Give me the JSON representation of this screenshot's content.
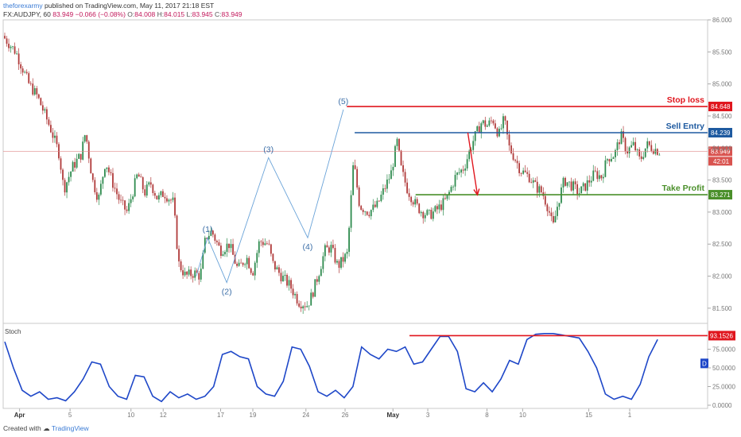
{
  "header": {
    "author": "theforexarmy",
    "published_text": "published on TradingView.com, May 11, 2017 21:18 EST",
    "symbol": "FX:AUDJPY, 60",
    "last": "83.949",
    "change": "−0.066 (−0.08%)",
    "o_label": "O:",
    "o_value": "84.008",
    "h_label": "H:",
    "h_value": "84.015",
    "l_label": "L:",
    "l_value": "83.945",
    "c_label": "C:",
    "c_value": "83.949"
  },
  "footer": {
    "created_with": "Created with",
    "brand": "TradingView"
  },
  "colors": {
    "up": "#2e8b4e",
    "down": "#b03a3a",
    "wave": "#6aa3d8",
    "wave_text": "#3d6fa8",
    "stop": "#e0161e",
    "entry": "#1e5aa0",
    "profit": "#4a8f2a",
    "stoch": "#1e47c8",
    "axis_text": "#777777"
  },
  "chart_data": [
    {
      "type": "candlestick",
      "title": "FX:AUDJPY, 60",
      "ylim": [
        81.3,
        86.0
      ],
      "y_ticks": [
        "86.000",
        "85.500",
        "85.000",
        "84.500",
        "84.000",
        "83.500",
        "83.000",
        "82.500",
        "82.000",
        "81.500"
      ],
      "x_ticks": [
        "Apr",
        "5",
        "10",
        "12",
        "17",
        "19",
        "24",
        "26",
        "May",
        "3",
        "8",
        "10",
        "15",
        "1"
      ],
      "price_path": [
        {
          "x": 0,
          "y": 85.75
        },
        {
          "x": 1.5,
          "y": 85.5
        },
        {
          "x": 3,
          "y": 85.0
        },
        {
          "x": 4,
          "y": 84.8
        },
        {
          "x": 5.5,
          "y": 84.3
        },
        {
          "x": 6.5,
          "y": 83.9
        },
        {
          "x": 7,
          "y": 83.35
        },
        {
          "x": 8,
          "y": 83.7
        },
        {
          "x": 9,
          "y": 83.9
        },
        {
          "x": 9.5,
          "y": 84.25
        },
        {
          "x": 10.3,
          "y": 83.5
        },
        {
          "x": 11,
          "y": 83.2
        },
        {
          "x": 11.8,
          "y": 83.8
        },
        {
          "x": 12.5,
          "y": 83.5
        },
        {
          "x": 13.5,
          "y": 83.15
        },
        {
          "x": 14.3,
          "y": 83.0
        },
        {
          "x": 15.5,
          "y": 83.6
        },
        {
          "x": 16.3,
          "y": 83.3
        },
        {
          "x": 17,
          "y": 83.45
        },
        {
          "x": 17.8,
          "y": 83.2
        },
        {
          "x": 18.5,
          "y": 83.3
        },
        {
          "x": 19.6,
          "y": 83.15
        },
        {
          "x": 20.2,
          "y": 82.2
        },
        {
          "x": 21,
          "y": 82.0
        },
        {
          "x": 22,
          "y": 82.05
        },
        {
          "x": 22.7,
          "y": 82.0
        },
        {
          "x": 23.3,
          "y": 82.6
        },
        {
          "x": 24,
          "y": 82.7
        },
        {
          "x": 25,
          "y": 82.4
        },
        {
          "x": 26,
          "y": 82.5
        },
        {
          "x": 27,
          "y": 82.1
        },
        {
          "x": 28,
          "y": 82.3
        },
        {
          "x": 28.7,
          "y": 82.05
        },
        {
          "x": 29.5,
          "y": 82.55
        },
        {
          "x": 30.5,
          "y": 82.5
        },
        {
          "x": 31,
          "y": 82.2
        },
        {
          "x": 32,
          "y": 82.0
        },
        {
          "x": 33,
          "y": 81.85
        },
        {
          "x": 34,
          "y": 81.6
        },
        {
          "x": 35,
          "y": 81.55
        },
        {
          "x": 35.5,
          "y": 81.7
        },
        {
          "x": 36.2,
          "y": 82.0
        },
        {
          "x": 37,
          "y": 82.4
        },
        {
          "x": 37.7,
          "y": 82.45
        },
        {
          "x": 38.5,
          "y": 82.15
        },
        {
          "x": 39.6,
          "y": 82.35
        },
        {
          "x": 40.3,
          "y": 83.8
        },
        {
          "x": 41,
          "y": 83.1
        },
        {
          "x": 42,
          "y": 83.0
        },
        {
          "x": 43,
          "y": 83.1
        },
        {
          "x": 43.8,
          "y": 83.35
        },
        {
          "x": 44.6,
          "y": 83.6
        },
        {
          "x": 45.3,
          "y": 84.1
        },
        {
          "x": 45.8,
          "y": 83.65
        },
        {
          "x": 46.5,
          "y": 83.35
        },
        {
          "x": 47.5,
          "y": 83.1
        },
        {
          "x": 48.2,
          "y": 83.0
        },
        {
          "x": 49,
          "y": 82.95
        },
        {
          "x": 50,
          "y": 83.05
        },
        {
          "x": 51,
          "y": 83.2
        },
        {
          "x": 52,
          "y": 83.55
        },
        {
          "x": 53,
          "y": 83.7
        },
        {
          "x": 54,
          "y": 84.1
        },
        {
          "x": 55,
          "y": 84.4
        },
        {
          "x": 55.7,
          "y": 84.35
        },
        {
          "x": 56.3,
          "y": 84.45
        },
        {
          "x": 57,
          "y": 84.2
        },
        {
          "x": 57.6,
          "y": 84.45
        },
        {
          "x": 58.2,
          "y": 84.0
        },
        {
          "x": 58.8,
          "y": 83.85
        },
        {
          "x": 59.5,
          "y": 83.65
        },
        {
          "x": 60.5,
          "y": 83.55
        },
        {
          "x": 61.2,
          "y": 83.4
        },
        {
          "x": 62,
          "y": 83.3
        },
        {
          "x": 62.7,
          "y": 83.05
        },
        {
          "x": 63.2,
          "y": 82.75
        },
        {
          "x": 63.8,
          "y": 83.15
        },
        {
          "x": 64.5,
          "y": 83.5
        },
        {
          "x": 65.5,
          "y": 83.4
        },
        {
          "x": 66.2,
          "y": 83.3
        },
        {
          "x": 66.9,
          "y": 83.4
        },
        {
          "x": 68,
          "y": 83.6
        },
        {
          "x": 68.8,
          "y": 83.55
        },
        {
          "x": 69.5,
          "y": 83.85
        },
        {
          "x": 70.3,
          "y": 83.9
        },
        {
          "x": 71,
          "y": 84.2
        },
        {
          "x": 71.7,
          "y": 83.95
        },
        {
          "x": 72.5,
          "y": 84.05
        },
        {
          "x": 73.2,
          "y": 83.8
        },
        {
          "x": 74,
          "y": 84.05
        },
        {
          "x": 74.7,
          "y": 84.0
        },
        {
          "x": 75.4,
          "y": 83.95
        }
      ],
      "candle_jitter": 0.09
    },
    {
      "type": "line",
      "title": "Stoch",
      "ylim": [
        0,
        100
      ],
      "y_ticks": [
        "75.0000",
        "50.0000",
        "25.0000",
        "0.0000"
      ],
      "series": [
        {
          "name": "Stoch",
          "last_value_label": "D",
          "x": [
            0,
            1,
            2,
            3,
            4,
            5,
            6,
            7,
            8,
            9,
            10,
            11,
            12,
            13,
            14,
            15,
            16,
            17,
            18,
            19,
            20,
            21,
            22,
            23,
            24,
            25,
            26,
            27,
            28,
            29,
            30,
            31,
            32,
            33,
            34,
            35,
            36,
            37,
            38,
            39,
            40,
            41,
            42,
            43,
            44,
            45,
            46,
            47,
            48,
            49,
            50,
            51,
            52,
            53,
            54,
            55,
            56,
            57,
            58,
            59,
            60,
            61,
            62,
            63,
            64,
            65,
            66,
            67,
            68,
            69,
            70,
            71,
            72,
            73,
            74,
            75
          ],
          "values": [
            85,
            50,
            20,
            12,
            18,
            8,
            10,
            6,
            18,
            35,
            58,
            55,
            25,
            12,
            8,
            40,
            38,
            12,
            5,
            18,
            10,
            15,
            8,
            12,
            25,
            68,
            72,
            65,
            62,
            25,
            15,
            12,
            32,
            78,
            75,
            52,
            18,
            12,
            20,
            10,
            25,
            78,
            68,
            62,
            75,
            72,
            78,
            55,
            58,
            75,
            92,
            92,
            72,
            22,
            18,
            30,
            18,
            35,
            60,
            55,
            88,
            95,
            96,
            96,
            94,
            92,
            90,
            72,
            50,
            15,
            8,
            12,
            8,
            28,
            65,
            88
          ]
        }
      ],
      "level_label": "93.1526"
    }
  ],
  "annotations": {
    "waves": [
      {
        "label": "(1)",
        "x": 23.3,
        "y": 82.6
      },
      {
        "label": "(2)",
        "x": 25.5,
        "y": 81.9
      },
      {
        "label": "(3)",
        "x": 30.3,
        "y": 83.85
      },
      {
        "label": "(4)",
        "x": 34.8,
        "y": 82.6
      },
      {
        "label": "(5)",
        "x": 38.9,
        "y": 84.6
      }
    ],
    "stop_loss": {
      "label": "Stop loss",
      "value": 84.648,
      "value_label": "84.648",
      "from_x": 39.3
    },
    "sell_entry": {
      "label": "Sell Entry",
      "value": 84.239,
      "value_label": "84.239",
      "from_x": 40.2
    },
    "take_profit": {
      "label": "Take Profit",
      "value": 83.271,
      "value_label": "83.271",
      "from_x": 47.2
    },
    "current": {
      "value": 83.949,
      "value_label": "83.949",
      "countdown": "42:01"
    },
    "arrow": {
      "from_x": 53.2,
      "from_y": 84.24,
      "to_x": 54.3,
      "to_y": 83.27
    }
  }
}
